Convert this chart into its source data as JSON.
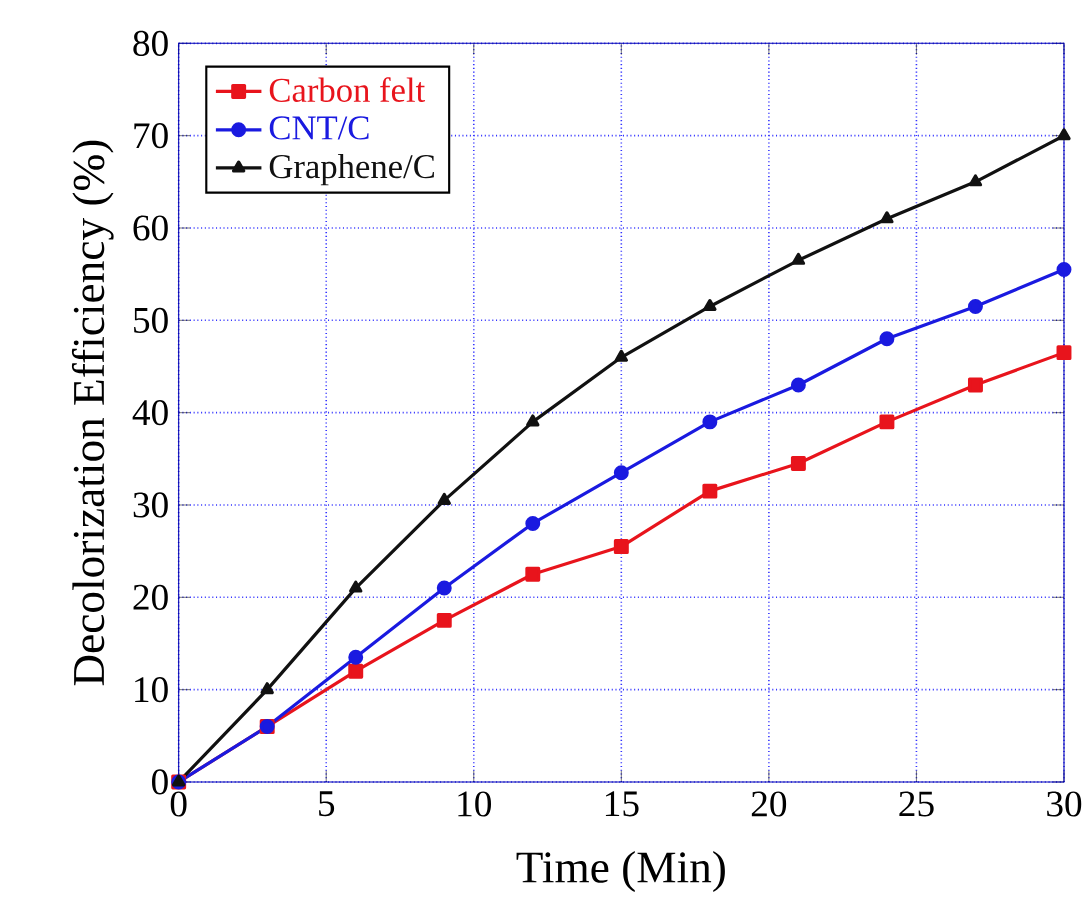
{
  "chart_data": {
    "type": "line",
    "xlabel": "Time (Min)",
    "ylabel": "Decolorization Efficiency (%)",
    "x": [
      0,
      3,
      6,
      9,
      12,
      15,
      18,
      21,
      24,
      27,
      30
    ],
    "series": [
      {
        "name": "Carbon felt",
        "color": "#e8141c",
        "marker": "square",
        "values": [
          0,
          6,
          12,
          17.5,
          22.5,
          25.5,
          31.5,
          34.5,
          39,
          43,
          46.5
        ]
      },
      {
        "name": "CNT/C",
        "color": "#1a1ae0",
        "marker": "circle",
        "values": [
          0,
          6,
          13.5,
          21,
          28,
          33.5,
          39,
          43,
          48,
          51.5,
          55.5
        ]
      },
      {
        "name": "Graphene/C",
        "color": "#111111",
        "marker": "triangle",
        "values": [
          0,
          10,
          21,
          30.5,
          39,
          46,
          51.5,
          56.5,
          61,
          65,
          70
        ]
      }
    ],
    "xlim": [
      0,
      30
    ],
    "ylim": [
      0,
      80
    ],
    "xticks": [
      0,
      5,
      10,
      15,
      20,
      25,
      30
    ],
    "yticks": [
      0,
      10,
      20,
      30,
      40,
      50,
      60,
      70,
      80
    ],
    "grid": true,
    "legend": "top left",
    "line_style": "solid"
  }
}
